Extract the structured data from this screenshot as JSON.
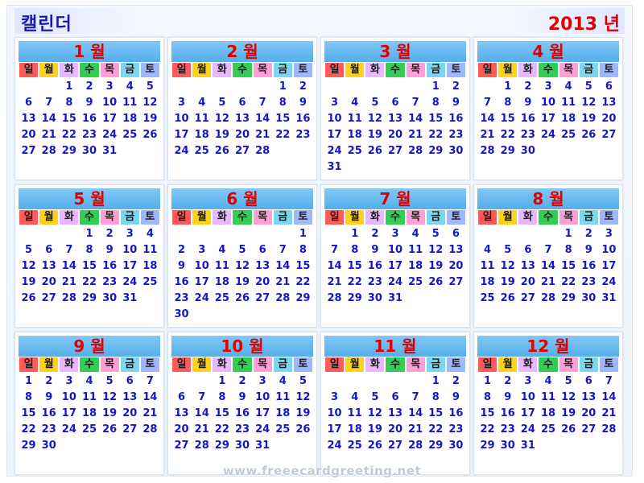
{
  "header": {
    "title": "캘린더",
    "year": "2013 년"
  },
  "weekdays": [
    {
      "label": "일",
      "color": "#ff5a5a"
    },
    {
      "label": "월",
      "color": "#ffd11a"
    },
    {
      "label": "화",
      "color": "#e7b8ff"
    },
    {
      "label": "수",
      "color": "#33cc55"
    },
    {
      "label": "목",
      "color": "#ff9fd8"
    },
    {
      "label": "금",
      "color": "#7bd6ee"
    },
    {
      "label": "토",
      "color": "#9fb7ff"
    }
  ],
  "months": [
    {
      "label": "1 월",
      "start": 2,
      "days": 31
    },
    {
      "label": "2 월",
      "start": 5,
      "days": 28
    },
    {
      "label": "3 월",
      "start": 5,
      "days": 31
    },
    {
      "label": "4 월",
      "start": 1,
      "days": 30
    },
    {
      "label": "5 월",
      "start": 3,
      "days": 31
    },
    {
      "label": "6 월",
      "start": 6,
      "days": 30
    },
    {
      "label": "7 월",
      "start": 1,
      "days": 31
    },
    {
      "label": "8 월",
      "start": 4,
      "days": 31
    },
    {
      "label": "9 월",
      "start": 0,
      "days": 30
    },
    {
      "label": "10 월",
      "start": 2,
      "days": 31
    },
    {
      "label": "11 월",
      "start": 5,
      "days": 30
    },
    {
      "label": "12 월",
      "start": 0,
      "days": 31
    }
  ],
  "watermark": "www.freeecardgreeting.net"
}
